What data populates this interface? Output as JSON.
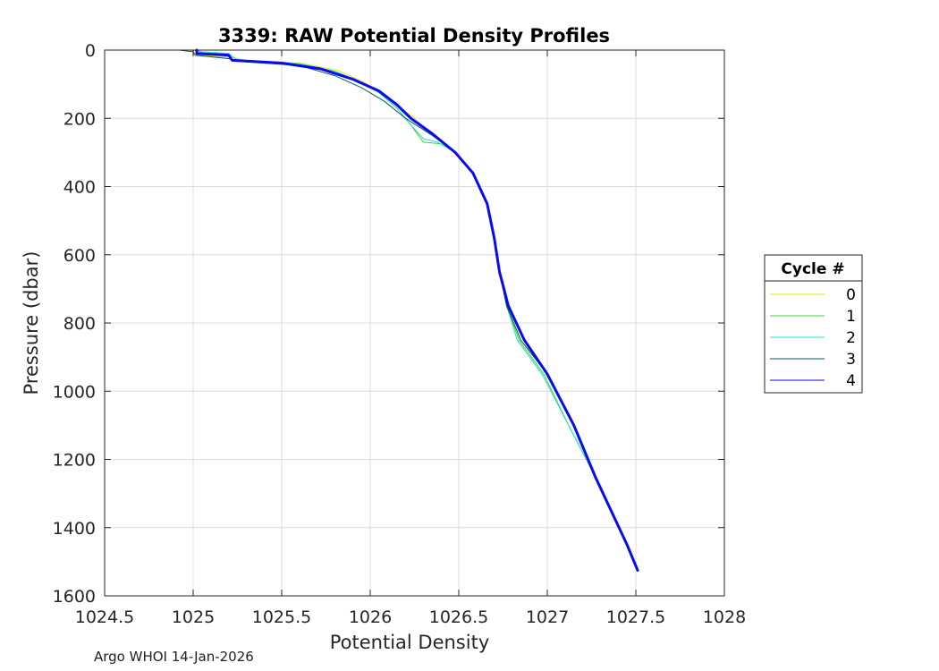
{
  "chart_data": {
    "type": "line",
    "title": "3339: RAW Potential Density Profiles",
    "xlabel": "Potential Density",
    "ylabel": "Pressure (dbar)",
    "xlim": [
      1024.5,
      1028
    ],
    "ylim": [
      0,
      1600
    ],
    "y_reversed": true,
    "grid": true,
    "xticks": [
      1024.5,
      1025,
      1025.5,
      1026,
      1026.5,
      1027,
      1027.5,
      1028
    ],
    "xtick_labels": [
      "1024.5",
      "1025",
      "1025.5",
      "1026",
      "1026.5",
      "1027",
      "1027.5",
      "1028"
    ],
    "yticks": [
      0,
      200,
      400,
      600,
      800,
      1000,
      1200,
      1400,
      1600
    ],
    "ytick_labels": [
      "0",
      "200",
      "400",
      "600",
      "800",
      "1000",
      "1200",
      "1400",
      "1600"
    ],
    "legend": {
      "title": "Cycle #",
      "position": "right"
    },
    "series": [
      {
        "name": "0",
        "color": "#e6e600",
        "width": 1,
        "x": [
          1024.98,
          1025.0,
          1025.01,
          1025.02,
          1025.2,
          1025.3,
          1025.6,
          1025.82,
          1025.95,
          1026.05,
          1026.15,
          1026.25,
          1026.35,
          1026.48,
          1026.58,
          1026.66,
          1026.7,
          1026.73,
          1026.77,
          1026.85,
          1027.0,
          1027.15,
          1027.27,
          1027.36,
          1027.45,
          1027.51
        ],
        "y": [
          0,
          3,
          10,
          15,
          20,
          30,
          38,
          60,
          90,
          120,
          160,
          200,
          250,
          300,
          360,
          450,
          550,
          650,
          750,
          850,
          950,
          1100,
          1250,
          1350,
          1450,
          1525
        ]
      },
      {
        "name": "1",
        "color": "#33dd33",
        "width": 1,
        "x": [
          1025.0,
          1025.05,
          1025.2,
          1025.25,
          1025.6,
          1025.8,
          1025.95,
          1026.05,
          1026.15,
          1026.23,
          1026.3,
          1026.4,
          1026.48,
          1026.58,
          1026.66,
          1026.7,
          1026.73,
          1026.77,
          1026.84,
          1026.98,
          1027.12,
          1027.27,
          1027.36,
          1027.45,
          1027.51
        ],
        "y": [
          0,
          5,
          10,
          30,
          40,
          62,
          95,
          125,
          170,
          220,
          270,
          275,
          300,
          360,
          450,
          550,
          650,
          750,
          850,
          950,
          1100,
          1250,
          1350,
          1450,
          1525
        ]
      },
      {
        "name": "2",
        "color": "#22e0c8",
        "width": 1,
        "x": [
          1025.0,
          1025.05,
          1025.2,
          1025.25,
          1025.6,
          1025.8,
          1025.95,
          1026.05,
          1026.15,
          1026.23,
          1026.3,
          1026.38,
          1026.48,
          1026.58,
          1026.66,
          1026.7,
          1026.73,
          1026.77,
          1026.83,
          1026.97,
          1027.12,
          1027.27,
          1027.36,
          1027.45,
          1027.51
        ],
        "y": [
          0,
          5,
          10,
          30,
          40,
          62,
          95,
          125,
          170,
          220,
          260,
          270,
          300,
          360,
          450,
          550,
          650,
          750,
          850,
          950,
          1100,
          1250,
          1350,
          1450,
          1525
        ]
      },
      {
        "name": "3",
        "color": "#0b5a6a",
        "width": 1,
        "x": [
          1024.92,
          1025.0,
          1025.01,
          1025.2,
          1025.3,
          1025.6,
          1025.8,
          1025.95,
          1026.08,
          1026.2,
          1026.35,
          1026.48,
          1026.58,
          1026.66,
          1026.7,
          1026.73,
          1026.77,
          1026.85,
          1027.0,
          1027.15,
          1027.27,
          1027.36,
          1027.45,
          1027.51
        ],
        "y": [
          0,
          5,
          15,
          25,
          35,
          45,
          75,
          110,
          150,
          200,
          250,
          300,
          360,
          450,
          550,
          650,
          750,
          850,
          950,
          1100,
          1250,
          1350,
          1450,
          1525
        ]
      },
      {
        "name": "4",
        "color": "#0a0aee",
        "width": 3,
        "x": [
          1025.02,
          1025.02,
          1025.2,
          1025.22,
          1025.5,
          1025.72,
          1025.9,
          1026.05,
          1026.15,
          1026.23,
          1026.35,
          1026.48,
          1026.58,
          1026.66,
          1026.7,
          1026.73,
          1026.78,
          1026.87,
          1027.0,
          1027.15,
          1027.27,
          1027.36,
          1027.45,
          1027.51
        ],
        "y": [
          0,
          10,
          15,
          30,
          38,
          55,
          85,
          120,
          160,
          200,
          245,
          300,
          360,
          450,
          550,
          650,
          750,
          850,
          950,
          1100,
          1250,
          1350,
          1450,
          1525
        ]
      }
    ]
  },
  "footer": "Argo WHOI 14-Jan-2026"
}
